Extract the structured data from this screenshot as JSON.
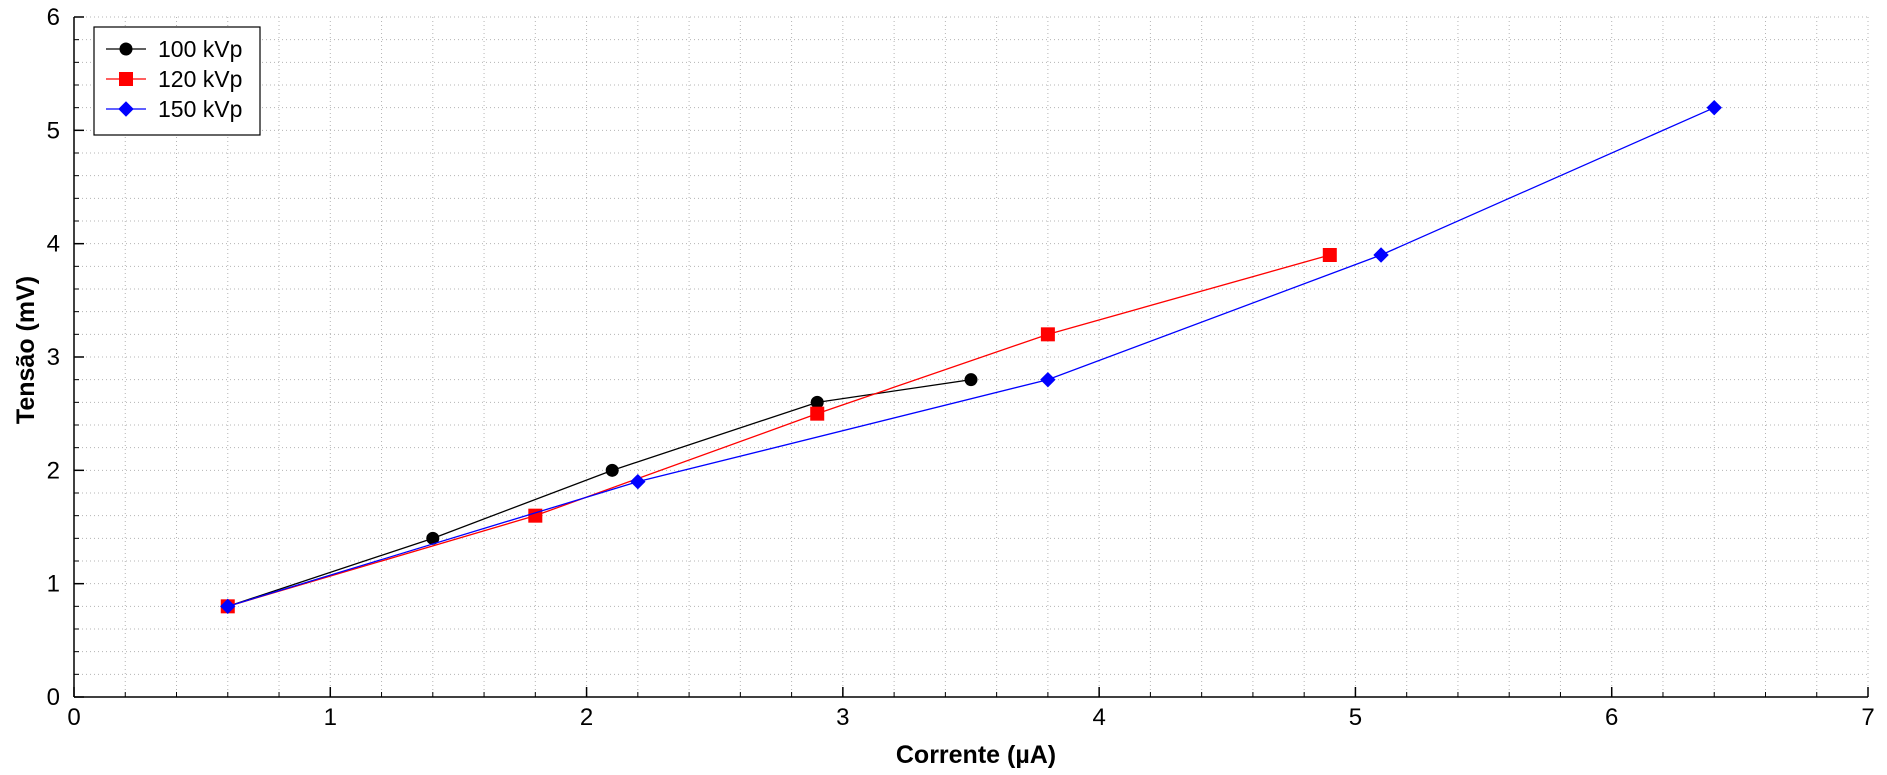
{
  "chart_data": {
    "type": "line",
    "title": "",
    "xlabel": "Corrente (µA)",
    "ylabel": "Tensão (mV)",
    "xlim": [
      0,
      7
    ],
    "ylim": [
      0,
      6
    ],
    "x_major_ticks": [
      0,
      1,
      2,
      3,
      4,
      5,
      6,
      7
    ],
    "y_major_ticks": [
      0,
      1,
      2,
      3,
      4,
      5,
      6
    ],
    "x_minor_step": 0.2,
    "y_minor_step": 0.2,
    "grid": true,
    "legend_position": "top-left",
    "series": [
      {
        "name": "100 kVp",
        "color": "#000000",
        "marker": "circle",
        "points": [
          [
            0.6,
            0.8
          ],
          [
            1.4,
            1.4
          ],
          [
            2.1,
            2.0
          ],
          [
            2.9,
            2.6
          ],
          [
            3.5,
            2.8
          ]
        ]
      },
      {
        "name": "120 kVp",
        "color": "#ff0000",
        "marker": "square",
        "points": [
          [
            0.6,
            0.8
          ],
          [
            1.8,
            1.6
          ],
          [
            2.9,
            2.5
          ],
          [
            3.8,
            3.2
          ],
          [
            4.9,
            3.9
          ]
        ]
      },
      {
        "name": "150 kVp",
        "color": "#0000ff",
        "marker": "diamond",
        "points": [
          [
            0.6,
            0.8
          ],
          [
            2.2,
            1.9
          ],
          [
            3.8,
            2.8
          ],
          [
            5.1,
            3.9
          ],
          [
            6.4,
            5.2
          ]
        ]
      }
    ]
  }
}
